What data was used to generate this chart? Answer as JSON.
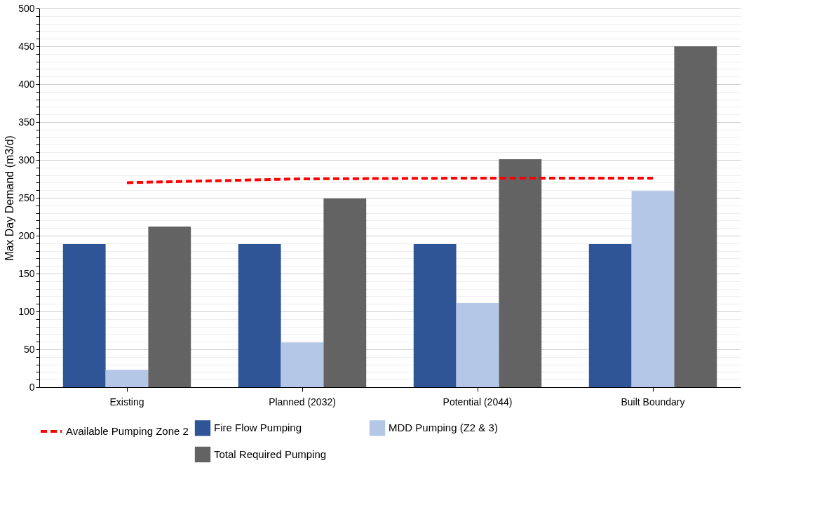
{
  "chart_data": {
    "type": "bar",
    "ylabel": "Max Day Demand (m3/d)",
    "categories": [
      "Existing",
      "Planned (2032)",
      "Potential (2044)",
      "Built Boundary"
    ],
    "series": [
      {
        "name": "Fire Flow Pumping",
        "color": "#2f5597",
        "values": [
          189,
          189,
          189,
          189
        ]
      },
      {
        "name": "MDD Pumping (Z2 & 3)",
        "color": "#b4c7e7",
        "values": [
          23,
          59,
          111,
          259
        ]
      },
      {
        "name": "Total Required Pumping",
        "color": "#636363",
        "values": [
          212,
          249,
          301,
          450
        ]
      },
      {
        "name": "Available Pumping Zone 2",
        "color": "#ff0000",
        "type": "line",
        "line_style": "dashed",
        "values": [
          270,
          275,
          276,
          276
        ]
      }
    ],
    "ylim": [
      0,
      500
    ],
    "yticks": [
      0,
      {
        "value": 10,
        "label": null
      },
      {
        "value": 20,
        "label": null
      },
      {
        "value": 30,
        "label": null
      },
      {
        "value": 40,
        "label": null
      },
      50,
      {
        "value": 60,
        "label": null
      },
      {
        "value": 70,
        "label": null
      },
      {
        "value": 80,
        "label": null
      },
      {
        "value": 90,
        "label": null
      },
      100,
      {
        "value": 110,
        "label": null
      },
      {
        "value": 120,
        "label": null
      },
      {
        "value": 130,
        "label": null
      },
      {
        "value": 140,
        "label": null
      },
      150,
      {
        "value": 160,
        "label": null
      },
      {
        "value": 170,
        "label": null
      },
      {
        "value": 180,
        "label": null
      },
      {
        "value": 190,
        "label": null
      },
      200,
      {
        "value": 210,
        "label": null
      },
      {
        "value": 220,
        "label": null
      },
      {
        "value": 230,
        "label": null
      },
      {
        "value": 240,
        "label": null
      },
      250,
      {
        "value": 260,
        "label": null
      },
      {
        "value": 270,
        "label": null
      },
      {
        "value": 280,
        "label": null
      },
      {
        "value": 290,
        "label": null
      },
      300,
      {
        "value": 310,
        "label": null
      },
      {
        "value": 320,
        "label": null
      },
      {
        "value": 330,
        "label": null
      },
      {
        "value": 340,
        "label": null
      },
      350,
      {
        "value": 360,
        "label": null
      },
      {
        "value": 370,
        "label": null
      },
      {
        "value": 380,
        "label": null
      },
      {
        "value": 390,
        "label": null
      },
      400,
      {
        "value": 410,
        "label": null
      },
      {
        "value": 420,
        "label": null
      },
      {
        "value": 430,
        "label": null
      },
      {
        "value": 440,
        "label": null
      },
      450,
      {
        "value": 460,
        "label": null
      },
      {
        "value": 470,
        "label": null
      },
      {
        "value": 480,
        "label": null
      },
      {
        "value": 490,
        "label": null
      },
      500
    ],
    "grid": "y",
    "legend": "bottom"
  }
}
